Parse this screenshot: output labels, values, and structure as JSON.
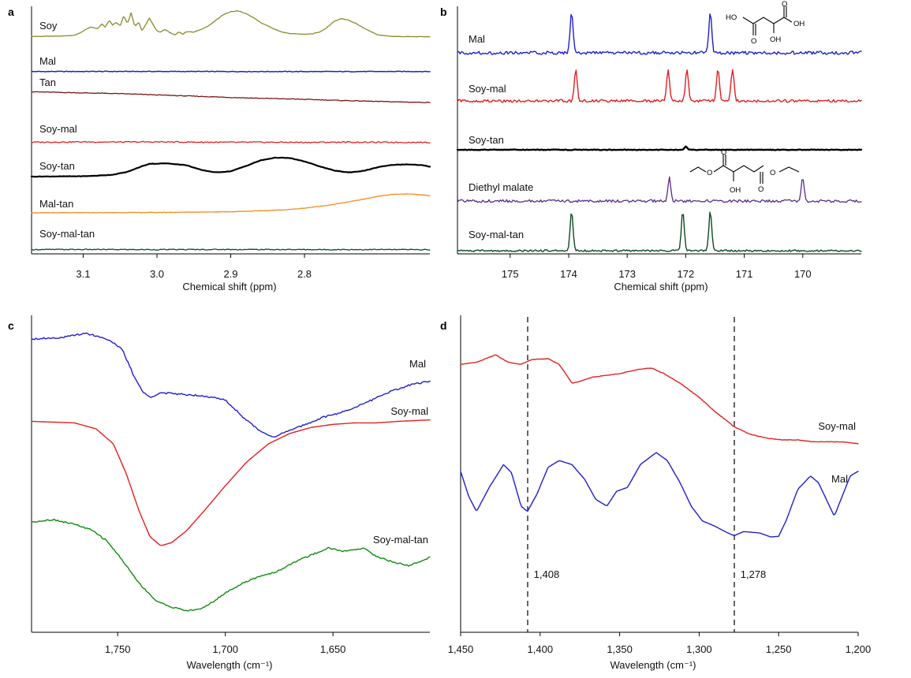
{
  "chart_data": [
    {
      "panel": "a",
      "type": "line",
      "xlabel": "Chemical shift (ppm)",
      "x_ticks": [
        "3.1",
        "3.0",
        "2.9",
        "2.8"
      ],
      "xlim": [
        3.17,
        2.63
      ],
      "x_reversed": true,
      "y_axis": "stacked spectra, arbitrary intensity, no tick labels",
      "series": [
        {
          "name": "Soy",
          "color": "#8a8a2a",
          "x": [
            3.17,
            3.13,
            3.11,
            3.1,
            3.09,
            3.08,
            3.075,
            3.07,
            3.065,
            3.06,
            3.055,
            3.05,
            3.045,
            3.04,
            3.035,
            3.03,
            3.025,
            3.02,
            3.015,
            3.01,
            3.005,
            3.0,
            2.995,
            2.99,
            2.98,
            2.975,
            2.97,
            2.965,
            2.96,
            2.95,
            2.94,
            2.93,
            2.92,
            2.91,
            2.9,
            2.89,
            2.88,
            2.87,
            2.86,
            2.85,
            2.84,
            2.83,
            2.82,
            2.81,
            2.8,
            2.79,
            2.78,
            2.77,
            2.76,
            2.75,
            2.74,
            2.73,
            2.72,
            2.71,
            2.7,
            2.68,
            2.65,
            2.63
          ],
          "values": [
            0.05,
            0.06,
            0.1,
            0.24,
            0.38,
            0.32,
            0.5,
            0.38,
            0.62,
            0.45,
            0.55,
            0.42,
            0.78,
            0.5,
            0.88,
            0.4,
            0.55,
            0.25,
            0.48,
            0.7,
            0.45,
            0.25,
            0.2,
            0.3,
            0.15,
            0.1,
            0.22,
            0.12,
            0.22,
            0.2,
            0.3,
            0.42,
            0.62,
            0.82,
            0.92,
            0.95,
            0.86,
            0.72,
            0.55,
            0.42,
            0.3,
            0.2,
            0.15,
            0.14,
            0.12,
            0.14,
            0.2,
            0.35,
            0.58,
            0.68,
            0.62,
            0.5,
            0.35,
            0.22,
            0.1,
            0.05,
            0.04,
            0.04
          ]
        },
        {
          "name": "Mal",
          "color": "#1f1fd0",
          "x": [
            3.17,
            3.05,
            2.95,
            2.85,
            2.75,
            2.65,
            2.63
          ],
          "values": [
            0.03,
            0.05,
            0.04,
            0.03,
            0.03,
            0.04,
            0.03
          ]
        },
        {
          "name": "Tan",
          "color": "#7a1414",
          "x": [
            3.17,
            3.1,
            3.05,
            3.0,
            2.95,
            2.9,
            2.85,
            2.8,
            2.75,
            2.7,
            2.65,
            2.63
          ],
          "values": [
            0.85,
            0.76,
            0.7,
            0.6,
            0.5,
            0.4,
            0.32,
            0.25,
            0.16,
            0.08,
            0.02,
            0.0
          ]
        },
        {
          "name": "Soy-mal",
          "color": "#e02020",
          "x": [
            3.17,
            3.1,
            3.05,
            3.0,
            2.95,
            2.9,
            2.85,
            2.8,
            2.75,
            2.7,
            2.65,
            2.63
          ],
          "values": [
            0.06,
            0.1,
            0.08,
            0.1,
            0.07,
            0.05,
            0.06,
            0.04,
            0.07,
            0.05,
            0.04,
            0.04
          ]
        },
        {
          "name": "Soy-tan",
          "color": "#000000",
          "x": [
            3.17,
            3.1,
            3.08,
            3.06,
            3.04,
            3.02,
            3.01,
            3.0,
            2.99,
            2.98,
            2.96,
            2.94,
            2.92,
            2.9,
            2.88,
            2.86,
            2.84,
            2.82,
            2.8,
            2.78,
            2.76,
            2.74,
            2.72,
            2.7,
            2.68,
            2.66,
            2.64,
            2.63
          ],
          "values": [
            0.0,
            0.02,
            0.05,
            0.1,
            0.25,
            0.55,
            0.68,
            0.68,
            0.7,
            0.68,
            0.6,
            0.35,
            0.22,
            0.28,
            0.55,
            0.85,
            1.0,
            0.98,
            0.8,
            0.55,
            0.32,
            0.22,
            0.3,
            0.5,
            0.62,
            0.65,
            0.6,
            0.52
          ]
        },
        {
          "name": "Mal-tan",
          "color": "#f08a1c",
          "x": [
            3.17,
            3.0,
            2.95,
            2.9,
            2.85,
            2.82,
            2.8,
            2.78,
            2.76,
            2.74,
            2.72,
            2.7,
            2.68,
            2.66,
            2.64,
            2.63
          ],
          "values": [
            0.0,
            0.02,
            0.04,
            0.06,
            0.12,
            0.18,
            0.25,
            0.34,
            0.45,
            0.58,
            0.72,
            0.88,
            0.98,
            1.0,
            0.95,
            0.9
          ]
        },
        {
          "name": "Soy-mal-tan",
          "color": "#0d4a22",
          "x": [
            3.17,
            3.1,
            3.0,
            2.9,
            2.8,
            2.7,
            2.65,
            2.63
          ],
          "values": [
            0.06,
            0.07,
            0.05,
            0.07,
            0.05,
            0.06,
            0.04,
            0.05
          ]
        }
      ]
    },
    {
      "panel": "b",
      "type": "line",
      "xlabel": "Chemical shift (ppm)",
      "x_ticks": [
        "175",
        "174",
        "173",
        "172",
        "171",
        "170"
      ],
      "xlim": [
        175.9,
        169.0
      ],
      "x_reversed": true,
      "y_axis": "stacked spectra, arbitrary intensity, no tick labels",
      "structure_labels": [
        "HO",
        "O",
        "OH",
        "O",
        "OH"
      ],
      "series": [
        {
          "name": "Mal",
          "color": "#1f1fd0",
          "peaks_ppm": [
            173.95,
            171.58
          ]
        },
        {
          "name": "Soy-mal",
          "color": "#e02020",
          "peaks_ppm": [
            173.88,
            172.3,
            171.98,
            171.45,
            171.2
          ]
        },
        {
          "name": "Soy-tan",
          "color": "#000000",
          "peaks_ppm": [
            172.0
          ]
        },
        {
          "name": "Diethyl malate",
          "color": "#5a2a8a",
          "peaks_ppm": [
            172.28,
            170.0
          ]
        },
        {
          "name": "Soy-mal-tan",
          "color": "#0d4a22",
          "peaks_ppm": [
            173.95,
            172.05,
            171.58
          ]
        }
      ]
    },
    {
      "panel": "c",
      "type": "line",
      "xlabel": "Wavelength (cm⁻¹)",
      "x_ticks": [
        "1,750",
        "1,700",
        "1,650"
      ],
      "xlim": [
        1790,
        1605
      ],
      "x_reversed": true,
      "y_axis": "stacked spectra, arbitrary intensity, no tick labels",
      "series": [
        {
          "name": "Mal",
          "color": "#1f1fd0",
          "x": [
            1790,
            1775,
            1765,
            1755,
            1748,
            1742,
            1738,
            1735,
            1730,
            1720,
            1710,
            1700,
            1695,
            1690,
            1685,
            1680,
            1677,
            1672,
            1665,
            1655,
            1645,
            1640,
            1632,
            1625,
            1615,
            1605
          ],
          "values": [
            0.92,
            0.93,
            0.96,
            0.92,
            0.85,
            0.65,
            0.55,
            0.52,
            0.55,
            0.54,
            0.53,
            0.5,
            0.43,
            0.36,
            0.3,
            0.26,
            0.25,
            0.28,
            0.32,
            0.38,
            0.42,
            0.45,
            0.5,
            0.55,
            0.6,
            0.63
          ]
        },
        {
          "name": "Soy-mal",
          "color": "#e02020",
          "x": [
            1790,
            1770,
            1760,
            1752,
            1746,
            1740,
            1735,
            1730,
            1725,
            1718,
            1710,
            1700,
            1690,
            1680,
            1670,
            1660,
            1650,
            1640,
            1630,
            1620,
            1605
          ],
          "values": [
            0.95,
            0.94,
            0.9,
            0.8,
            0.6,
            0.35,
            0.18,
            0.12,
            0.14,
            0.22,
            0.35,
            0.52,
            0.68,
            0.8,
            0.87,
            0.91,
            0.93,
            0.94,
            0.94,
            0.95,
            0.96
          ]
        },
        {
          "name": "Soy-mal-tan",
          "color": "#118a11",
          "x": [
            1790,
            1780,
            1770,
            1762,
            1755,
            1748,
            1740,
            1732,
            1725,
            1718,
            1712,
            1706,
            1700,
            1692,
            1684,
            1676,
            1668,
            1660,
            1652,
            1645,
            1636,
            1630,
            1622,
            1615,
            1610,
            1605
          ],
          "values": [
            0.92,
            0.94,
            0.9,
            0.85,
            0.76,
            0.6,
            0.4,
            0.25,
            0.2,
            0.17,
            0.18,
            0.24,
            0.32,
            0.4,
            0.46,
            0.5,
            0.58,
            0.64,
            0.7,
            0.67,
            0.7,
            0.63,
            0.58,
            0.55,
            0.58,
            0.62
          ]
        }
      ]
    },
    {
      "panel": "d",
      "type": "line",
      "xlabel": "Wavelength (cm⁻¹)",
      "x_ticks": [
        "1,450",
        "1,400",
        "1,350",
        "1,300",
        "1,250",
        "1,200"
      ],
      "xlim": [
        1450,
        1200
      ],
      "x_reversed": true,
      "y_axis": "stacked spectra, arbitrary intensity, no tick labels",
      "reference_lines": [
        {
          "x": 1408,
          "label": "1,408"
        },
        {
          "x": 1278,
          "label": "1,278"
        }
      ],
      "series": [
        {
          "name": "Soy-mal",
          "color": "#e02020",
          "x": [
            1450,
            1440,
            1428,
            1420,
            1412,
            1405,
            1395,
            1388,
            1380,
            1375,
            1368,
            1360,
            1350,
            1340,
            1330,
            1322,
            1312,
            1300,
            1290,
            1278,
            1268,
            1258,
            1248,
            1238,
            1228,
            1218,
            1210,
            1200
          ],
          "values": [
            0.8,
            0.82,
            0.9,
            0.82,
            0.8,
            0.85,
            0.86,
            0.8,
            0.6,
            0.62,
            0.66,
            0.68,
            0.7,
            0.74,
            0.76,
            0.7,
            0.6,
            0.45,
            0.3,
            0.14,
            0.06,
            0.02,
            0.0,
            0.0,
            -0.02,
            -0.02,
            -0.02,
            -0.04
          ]
        },
        {
          "name": "Mal",
          "color": "#1f1fd0",
          "x": [
            1450,
            1445,
            1440,
            1432,
            1423,
            1418,
            1412,
            1408,
            1402,
            1395,
            1388,
            1380,
            1372,
            1365,
            1358,
            1352,
            1345,
            1337,
            1327,
            1320,
            1312,
            1305,
            1298,
            1290,
            1282,
            1278,
            1272,
            1262,
            1255,
            1250,
            1245,
            1238,
            1230,
            1225,
            1220,
            1215,
            1210,
            1205,
            1200
          ],
          "values": [
            0.72,
            0.35,
            0.12,
            0.48,
            0.82,
            0.7,
            0.2,
            0.12,
            0.38,
            0.78,
            0.88,
            0.82,
            0.6,
            0.3,
            0.2,
            0.42,
            0.48,
            0.82,
            1.0,
            0.88,
            0.55,
            0.2,
            -0.02,
            -0.1,
            -0.2,
            -0.24,
            -0.18,
            -0.2,
            -0.26,
            -0.25,
            0.0,
            0.45,
            0.65,
            0.55,
            0.3,
            0.05,
            0.35,
            0.65,
            0.72
          ]
        }
      ]
    }
  ]
}
